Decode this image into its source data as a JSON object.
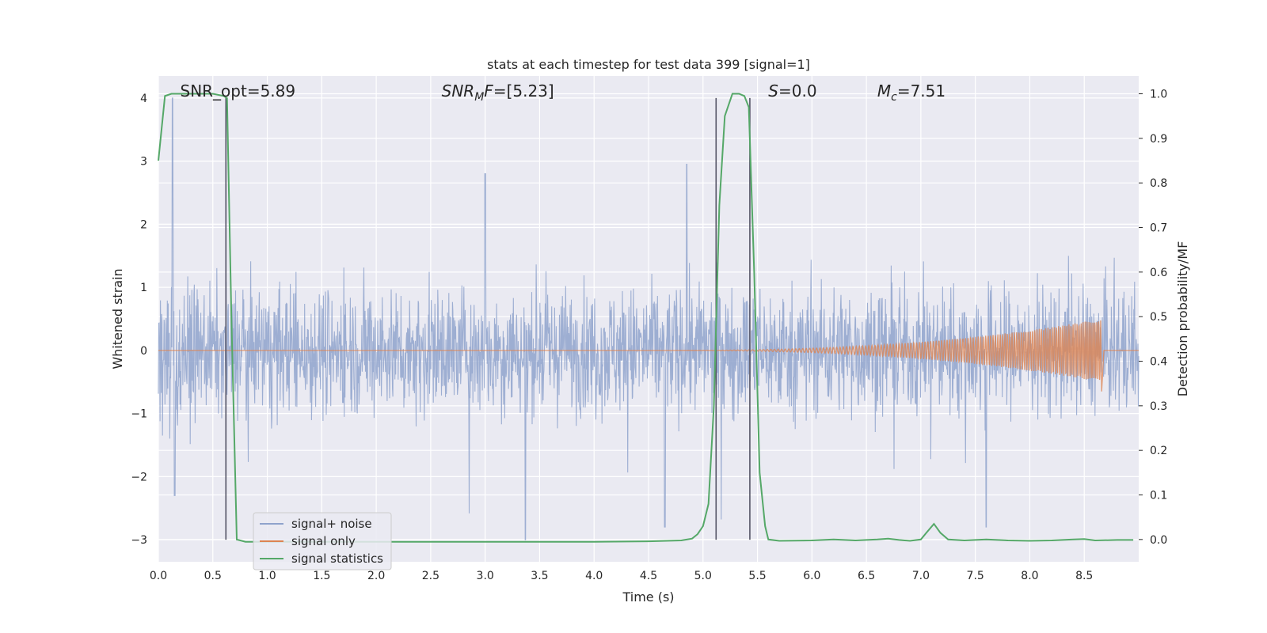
{
  "chart_data": {
    "type": "line",
    "title": "stats at each timestep for test data 399 [signal=1]",
    "xlabel": "Time (s)",
    "ylabel_left": "Whitened strain",
    "ylabel_right": "Detection probability/MF",
    "xlim": [
      0.0,
      9.0
    ],
    "ylim_left": [
      -3.35,
      4.35
    ],
    "ylim_right": [
      -0.05,
      1.04
    ],
    "x_ticks": [
      "0.0",
      "0.5",
      "1.0",
      "1.5",
      "2.0",
      "2.5",
      "3.0",
      "3.5",
      "4.0",
      "4.5",
      "5.0",
      "5.5",
      "6.0",
      "6.5",
      "7.0",
      "7.5",
      "8.0",
      "8.5"
    ],
    "y_ticks_left": [
      "4",
      "3",
      "2",
      "1",
      "0",
      "−1",
      "−2",
      "−3"
    ],
    "y_ticks_right": [
      "1.0",
      "0.9",
      "0.8",
      "0.7",
      "0.6",
      "0.5",
      "0.4",
      "0.3",
      "0.2",
      "0.1",
      "0.0"
    ],
    "grid": true,
    "annotations": [
      {
        "text": "SNR_opt=5.89",
        "x": 0.2
      },
      {
        "text": "SNR_MF=[5.23]",
        "x": 2.6
      },
      {
        "text": "S=0.0",
        "x": 5.6
      },
      {
        "text": "M_c=7.51",
        "x": 6.6
      }
    ],
    "vertical_lines": [
      0.62,
      5.12,
      5.43
    ],
    "series": [
      {
        "name": "signal+ noise",
        "color": "#8fa3cc",
        "axis": "left",
        "description_envelope": {
          "typical_upper": 1.2,
          "typical_lower": -1.2,
          "max_peaks": [
            [
              0.13,
              4.0
            ],
            [
              3.0,
              2.8
            ],
            [
              4.85,
              2.95
            ],
            [
              3.37,
              -3.0
            ],
            [
              0.15,
              -2.3
            ],
            [
              4.65,
              -2.8
            ],
            [
              7.6,
              -2.8
            ]
          ]
        }
      },
      {
        "name": "signal only",
        "color": "#dd8452",
        "axis": "left",
        "chirp": {
          "start": 4.5,
          "merger": 8.65,
          "peak_amplitude": 0.5
        }
      },
      {
        "name": "signal statistics",
        "color": "#55a868",
        "axis": "right",
        "x": [
          0.0,
          0.06,
          0.12,
          0.2,
          0.3,
          0.4,
          0.5,
          0.6,
          0.63,
          0.67,
          0.72,
          0.8,
          1.0,
          2.0,
          3.0,
          4.0,
          4.5,
          4.8,
          4.9,
          4.95,
          5.0,
          5.05,
          5.1,
          5.15,
          5.2,
          5.27,
          5.33,
          5.38,
          5.42,
          5.47,
          5.52,
          5.57,
          5.6,
          5.7,
          6.0,
          6.2,
          6.4,
          6.6,
          6.7,
          6.8,
          6.9,
          7.0,
          7.05,
          7.12,
          7.18,
          7.25,
          7.4,
          7.6,
          7.8,
          8.0,
          8.2,
          8.4,
          8.5,
          8.6,
          8.8,
          8.95
        ],
        "values": [
          0.85,
          0.995,
          1.0,
          1.0,
          1.0,
          1.0,
          1.0,
          0.995,
          0.99,
          0.5,
          0.0,
          -0.005,
          -0.005,
          -0.005,
          -0.005,
          -0.005,
          -0.004,
          -0.002,
          0.002,
          0.012,
          0.03,
          0.08,
          0.3,
          0.75,
          0.95,
          1.0,
          1.0,
          0.995,
          0.97,
          0.6,
          0.15,
          0.03,
          0.0,
          -0.003,
          -0.002,
          0.0,
          -0.002,
          0.0,
          0.002,
          -0.001,
          -0.003,
          0.0,
          0.015,
          0.035,
          0.015,
          0.0,
          -0.002,
          0.0,
          -0.002,
          -0.003,
          -0.002,
          0.0,
          0.001,
          -0.002,
          -0.001,
          -0.001
        ]
      }
    ],
    "legend": {
      "placement": "lower-left"
    }
  }
}
